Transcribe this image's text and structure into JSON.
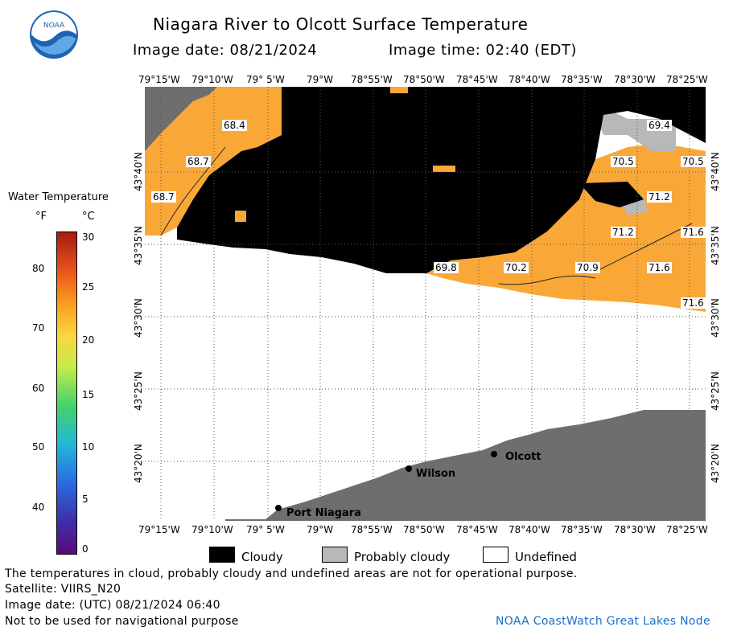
{
  "header": {
    "title": "Niagara River to Olcott Surface Temperature",
    "image_date": "Image date: 08/21/2024",
    "image_time": "Image time: 02:40 (EDT)"
  },
  "logo": {
    "text": "NOAA"
  },
  "map": {
    "lon_labels": [
      "79°15'W",
      "79°10'W",
      "79° 5'W",
      "79°W",
      "78°55'W",
      "78°50'W",
      "78°45'W",
      "78°40'W",
      "78°35'W",
      "78°30'W",
      "78°25'W"
    ],
    "lat_labels": [
      "43°40'N",
      "43°35'N",
      "43°30'N",
      "43°25'N",
      "43°20'N"
    ],
    "temps": [
      "68.4",
      "68.7",
      "68.7",
      "69.4",
      "70.5",
      "70.5",
      "71.2",
      "71.2",
      "71.6",
      "71.6",
      "71.6",
      "69.8",
      "70.2",
      "70.9"
    ],
    "places": [
      "Port Niagara",
      "Wilson",
      "Olcott"
    ]
  },
  "colorbar": {
    "title": "Water Temperature",
    "unit_f": "°F",
    "unit_c": "°C",
    "f_ticks": [
      "40",
      "50",
      "60",
      "70",
      "80"
    ],
    "c_ticks": [
      "0",
      "5",
      "10",
      "15",
      "20",
      "25",
      "30"
    ]
  },
  "legend": {
    "cloudy": "Cloudy",
    "probably_cloudy": "Probably cloudy",
    "undefined": "Undefined"
  },
  "footer": {
    "note": "The temperatures in cloud, probably cloudy and undefined areas are not for operational purpose.",
    "satellite": "Satellite: VIIRS_N20",
    "utc_date": "Image date: (UTC) 08/21/2024  06:40",
    "nav_warning": "Not to be used for navigational purpose",
    "credit": "NOAA CoastWatch Great Lakes Node"
  },
  "colors": {
    "warm": "#f9a838",
    "cloud": "#000000",
    "probably_cloudy": "#b8b8b8",
    "land": "#6e6e6e",
    "credit": "#1a6fcf"
  }
}
